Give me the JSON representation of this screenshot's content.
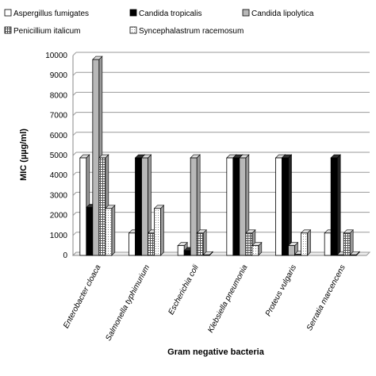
{
  "chart_data": {
    "type": "bar",
    "title": "",
    "xlabel": "Gram negative bacteria",
    "ylabel": "MIC (µµg/ml)",
    "ylim": [
      0,
      10000
    ],
    "yticks": [
      0,
      1000,
      2000,
      3000,
      4000,
      5000,
      6000,
      7000,
      8000,
      9000,
      10000
    ],
    "grid": true,
    "legend_position": "top",
    "categories": [
      "Enterobacter cloaca",
      "Salmonella typhimurium",
      "Escherichia coli",
      "Klebsiella pneumonia",
      "Proteus vulgaris",
      "Serratia marcencens"
    ],
    "series": [
      {
        "name": "Aspergillus fumigates",
        "values": [
          4880,
          1120,
          490,
          4880,
          4880,
          1120
        ],
        "color": "#ffffff",
        "pattern": "none"
      },
      {
        "name": "Candida tropicalis",
        "values": [
          2400,
          4880,
          240,
          4880,
          4880,
          4880
        ],
        "color": "#000000",
        "pattern": "none"
      },
      {
        "name": "Candida lipolytica",
        "values": [
          9800,
          4880,
          4880,
          4880,
          490,
          30
        ],
        "color": "#b8b8b8",
        "pattern": "none"
      },
      {
        "name": "Penicillium italicum",
        "values": [
          4880,
          1120,
          1120,
          1120,
          60,
          1120
        ],
        "color": "#8c8c8c",
        "pattern": "grid"
      },
      {
        "name": "Syncephalastrum racemosum",
        "values": [
          2350,
          2350,
          30,
          490,
          1120,
          30
        ],
        "color": "#ffffff",
        "pattern": "dots"
      }
    ]
  }
}
